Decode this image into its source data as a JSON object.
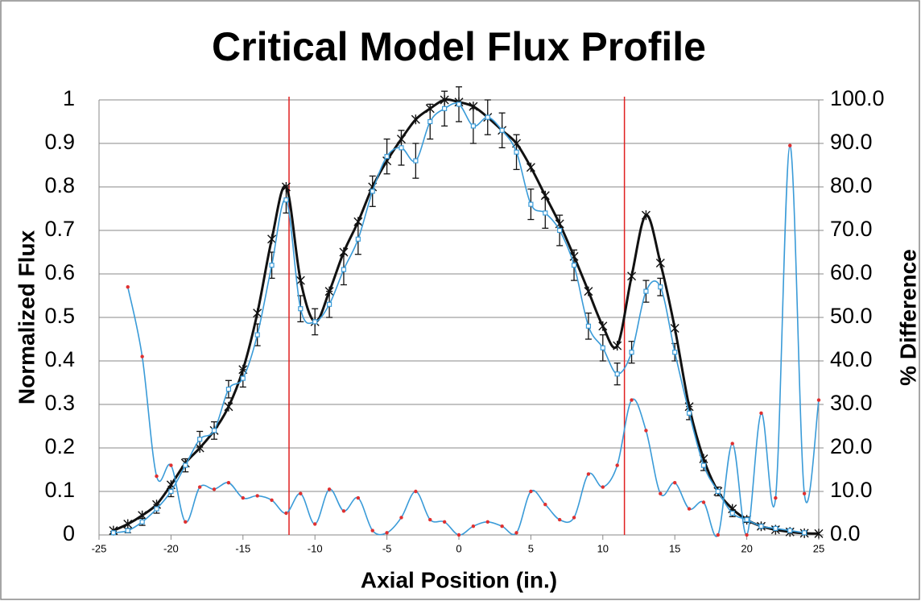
{
  "chart_data": {
    "type": "line",
    "title": "Critical Model Flux Profile",
    "x_label": "Axial Position (in.)",
    "y_label": "Normalized Flux",
    "y2_label": "% Difference",
    "xlim": [
      -25,
      25
    ],
    "xticks": [
      -25,
      -20,
      -15,
      -10,
      -5,
      0,
      5,
      10,
      15,
      20,
      25
    ],
    "ylim": [
      0,
      1
    ],
    "yticks": [
      0,
      0.1,
      0.2,
      0.3,
      0.4,
      0.5,
      0.6,
      0.7,
      0.8,
      0.9,
      1
    ],
    "y2lim": [
      0,
      100
    ],
    "y2ticks": [
      {
        "value": 0,
        "label": "0.0"
      },
      {
        "value": 10,
        "label": "10.0"
      },
      {
        "value": 20,
        "label": "20.0"
      },
      {
        "value": 30,
        "label": "30.0"
      },
      {
        "value": 40,
        "label": "40.0"
      },
      {
        "value": 50,
        "label": "50.0"
      },
      {
        "value": 60,
        "label": "60.0"
      },
      {
        "value": 70,
        "label": "70.0"
      },
      {
        "value": 80,
        "label": "80.0"
      },
      {
        "value": 90,
        "label": "90.0"
      },
      {
        "value": 100,
        "label": "100.0"
      }
    ],
    "grid": true,
    "vlines": [
      -11.8,
      11.5
    ],
    "vline_color": "#e02020",
    "series": [
      {
        "color": "#111111",
        "marker": "star",
        "x": [
          -24,
          -23,
          -22,
          -21,
          -20,
          -19,
          -18,
          -17,
          -16,
          -15,
          -14,
          -13,
          -12,
          -11,
          -10,
          -9,
          -8,
          -7,
          -6,
          -5,
          -4,
          -3,
          -2,
          -1,
          0,
          1,
          2,
          3,
          4,
          5,
          6,
          7,
          8,
          9,
          10,
          11,
          12,
          13,
          14,
          15,
          16,
          17,
          18,
          19,
          20,
          21,
          22,
          23,
          24,
          25
        ],
        "values": [
          0.01,
          0.025,
          0.045,
          0.07,
          0.115,
          0.165,
          0.2,
          0.24,
          0.295,
          0.38,
          0.51,
          0.68,
          0.8,
          0.585,
          0.49,
          0.56,
          0.65,
          0.72,
          0.8,
          0.86,
          0.91,
          0.955,
          0.98,
          1.0,
          0.995,
          0.985,
          0.96,
          0.93,
          0.9,
          0.845,
          0.78,
          0.715,
          0.64,
          0.56,
          0.48,
          0.435,
          0.595,
          0.735,
          0.625,
          0.475,
          0.295,
          0.175,
          0.1,
          0.06,
          0.035,
          0.02,
          0.012,
          0.007,
          0.004,
          0.003
        ]
      },
      {
        "color": "#3a9bd8",
        "marker": "square",
        "x": [
          -24,
          -23,
          -22,
          -21,
          -20,
          -19,
          -18,
          -17,
          -16,
          -15,
          -14,
          -13,
          -12,
          -11,
          -10,
          -9,
          -8,
          -7,
          -6,
          -5,
          -4,
          -3,
          -2,
          -1,
          0,
          1,
          2,
          3,
          4,
          5,
          6,
          7,
          8,
          9,
          10,
          11,
          12,
          13,
          14,
          15,
          16,
          17,
          18,
          19,
          20,
          21,
          22,
          23,
          24
        ],
        "values": [
          0.005,
          0.01,
          0.03,
          0.06,
          0.1,
          0.16,
          0.22,
          0.24,
          0.335,
          0.36,
          0.46,
          0.62,
          0.77,
          0.52,
          0.49,
          0.53,
          0.61,
          0.68,
          0.79,
          0.87,
          0.89,
          0.86,
          0.95,
          0.98,
          0.99,
          0.94,
          0.96,
          0.93,
          0.88,
          0.76,
          0.74,
          0.7,
          0.62,
          0.48,
          0.43,
          0.37,
          0.42,
          0.56,
          0.57,
          0.42,
          0.28,
          0.16,
          0.1,
          0.05,
          0.035,
          0.02,
          0.015,
          0.01,
          0.005
        ],
        "errors": [
          0.003,
          0.005,
          0.008,
          0.01,
          0.012,
          0.015,
          0.018,
          0.02,
          0.02,
          0.02,
          0.025,
          0.03,
          0.03,
          0.03,
          0.03,
          0.03,
          0.035,
          0.035,
          0.035,
          0.04,
          0.04,
          0.04,
          0.04,
          0.04,
          0.04,
          0.04,
          0.04,
          0.04,
          0.04,
          0.035,
          0.035,
          0.035,
          0.035,
          0.03,
          0.03,
          0.025,
          0.025,
          0.025,
          0.02,
          0.02,
          0.015,
          0.012,
          0.01,
          0.008,
          0.006,
          0.005,
          0.004,
          0.003,
          0.002
        ]
      },
      {
        "color": "#3a9bd8",
        "marker": "dot",
        "marker_color": "#e03030",
        "axis": "y2",
        "x": [
          -23,
          -22,
          -21,
          -20,
          -19,
          -18,
          -17,
          -16,
          -15,
          -14,
          -13,
          -12,
          -11,
          -10,
          -9,
          -8,
          -7,
          -6,
          -5,
          -4,
          -3,
          -2,
          -1,
          0,
          1,
          2,
          3,
          4,
          5,
          6,
          7,
          8,
          9,
          10,
          11,
          12,
          13,
          14,
          15,
          16,
          17,
          18,
          19,
          20,
          21,
          22,
          23,
          24,
          25
        ],
        "values": [
          57,
          41,
          13.5,
          16,
          3,
          11,
          10.5,
          12,
          8.5,
          9,
          8,
          5,
          9.5,
          2.5,
          10.5,
          5.5,
          8.5,
          1,
          0.5,
          4,
          10,
          3.5,
          3,
          0,
          2,
          3,
          2,
          0.5,
          10,
          7,
          3.5,
          4,
          14,
          11,
          16,
          31,
          24,
          9.5,
          12,
          6,
          7.5,
          0,
          21,
          0,
          28,
          8.5,
          89.5,
          9.5,
          31
        ]
      }
    ]
  }
}
